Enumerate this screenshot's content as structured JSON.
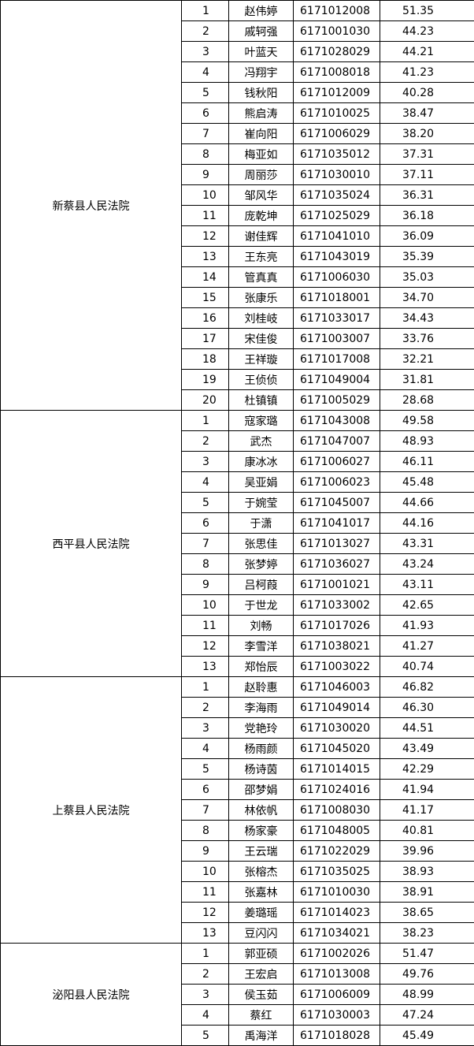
{
  "table": {
    "groups": [
      {
        "court": "新蔡县人民法院",
        "rows": [
          [
            "1",
            "赵伟婷",
            "6171012008",
            "51.35"
          ],
          [
            "2",
            "戚轲强",
            "6171001030",
            "44.23"
          ],
          [
            "3",
            "叶蓝天",
            "6171028029",
            "44.21"
          ],
          [
            "4",
            "冯翔宇",
            "6171008018",
            "41.23"
          ],
          [
            "5",
            "钱秋阳",
            "6171012009",
            "40.28"
          ],
          [
            "6",
            "熊启涛",
            "6171010025",
            "38.47"
          ],
          [
            "7",
            "崔向阳",
            "6171006029",
            "38.20"
          ],
          [
            "8",
            "梅亚如",
            "6171035012",
            "37.31"
          ],
          [
            "9",
            "周丽莎",
            "6171030010",
            "37.11"
          ],
          [
            "10",
            "邹风华",
            "6171035024",
            "36.31"
          ],
          [
            "11",
            "庞乾坤",
            "6171025029",
            "36.18"
          ],
          [
            "12",
            "谢佳辉",
            "6171041010",
            "36.09"
          ],
          [
            "13",
            "王东亮",
            "6171043019",
            "35.39"
          ],
          [
            "14",
            "管真真",
            "6171006030",
            "35.03"
          ],
          [
            "15",
            "张康乐",
            "6171018001",
            "34.70"
          ],
          [
            "16",
            "刘桂岐",
            "6171033017",
            "34.43"
          ],
          [
            "17",
            "宋佳俊",
            "6171003007",
            "33.76"
          ],
          [
            "18",
            "王祥璇",
            "6171017008",
            "32.21"
          ],
          [
            "19",
            "王侦侦",
            "6171049004",
            "31.81"
          ],
          [
            "20",
            "杜镇镇",
            "6171005029",
            "28.68"
          ]
        ]
      },
      {
        "court": "西平县人民法院",
        "rows": [
          [
            "1",
            "寇家璐",
            "6171043008",
            "49.58"
          ],
          [
            "2",
            "武杰",
            "6171047007",
            "48.93"
          ],
          [
            "3",
            "康冰冰",
            "6171006027",
            "46.11"
          ],
          [
            "4",
            "吴亚娟",
            "6171006023",
            "45.48"
          ],
          [
            "5",
            "于婉莹",
            "6171045007",
            "44.66"
          ],
          [
            "6",
            "于潇",
            "6171041017",
            "44.16"
          ],
          [
            "7",
            "张思佳",
            "6171013027",
            "43.31"
          ],
          [
            "8",
            "张梦婷",
            "6171036027",
            "43.24"
          ],
          [
            "9",
            "吕柯葭",
            "6171001021",
            "43.11"
          ],
          [
            "10",
            "于世龙",
            "6171033002",
            "42.65"
          ],
          [
            "11",
            "刘畅",
            "6171017026",
            "41.93"
          ],
          [
            "12",
            "李雪洋",
            "6171038021",
            "41.27"
          ],
          [
            "13",
            "郑怡辰",
            "6171003022",
            "40.74"
          ]
        ]
      },
      {
        "court": "上蔡县人民法院",
        "rows": [
          [
            "1",
            "赵聆惠",
            "6171046003",
            "46.82"
          ],
          [
            "2",
            "李海雨",
            "6171049014",
            "46.30"
          ],
          [
            "3",
            "党艳玲",
            "6171030020",
            "44.51"
          ],
          [
            "4",
            "杨雨颜",
            "6171045020",
            "43.49"
          ],
          [
            "5",
            "杨诗茵",
            "6171014015",
            "42.29"
          ],
          [
            "6",
            "邵梦娟",
            "6171024016",
            "41.94"
          ],
          [
            "7",
            "林依帆",
            "6171008030",
            "41.17"
          ],
          [
            "8",
            "杨家豪",
            "6171048005",
            "40.81"
          ],
          [
            "9",
            "王云瑞",
            "6171022029",
            "39.96"
          ],
          [
            "10",
            "张榕杰",
            "6171035025",
            "38.93"
          ],
          [
            "11",
            "张嘉林",
            "6171010030",
            "38.91"
          ],
          [
            "12",
            "姜璐瑶",
            "6171014023",
            "38.65"
          ],
          [
            "13",
            "豆闪闪",
            "6171034021",
            "38.23"
          ]
        ]
      },
      {
        "court": "泌阳县人民法院",
        "rows": [
          [
            "1",
            "郭亚硕",
            "6171002026",
            "51.47"
          ],
          [
            "2",
            "王宏启",
            "6171013008",
            "49.76"
          ],
          [
            "3",
            "侯玉茹",
            "6171006009",
            "48.99"
          ],
          [
            "4",
            "蔡红",
            "6171030003",
            "47.24"
          ],
          [
            "5",
            "禹海洋",
            "6171018028",
            "45.49"
          ]
        ]
      }
    ]
  }
}
